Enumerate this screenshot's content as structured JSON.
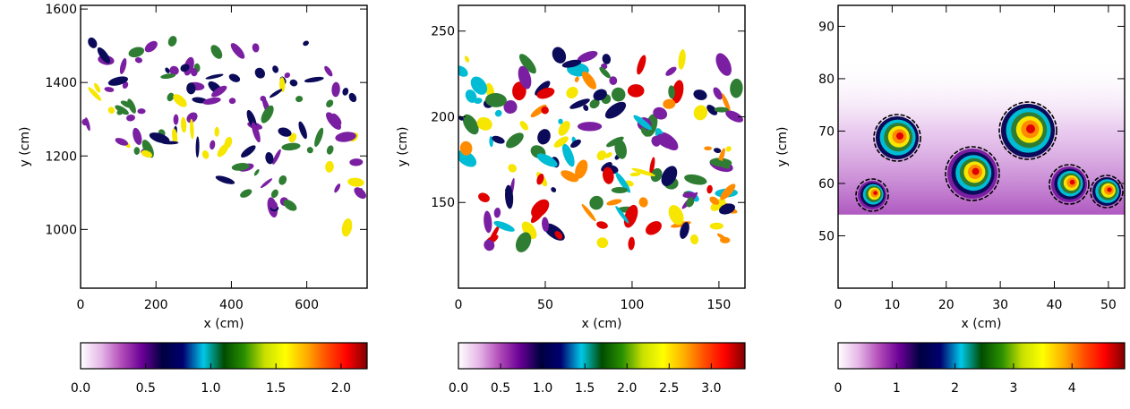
{
  "chart_data": [
    {
      "type": "heatmap",
      "xlabel": "x (cm)",
      "ylabel": "y (cm)",
      "xlim": [
        0,
        760
      ],
      "ylim": [
        840,
        1610
      ],
      "x_ticks": [
        "0",
        "200",
        "400",
        "600"
      ],
      "y_ticks": [
        "1000",
        "1200",
        "1400",
        "1600"
      ],
      "x_tick_values": [
        0,
        200,
        400,
        600
      ],
      "y_tick_values": [
        1000,
        1200,
        1400,
        1600
      ],
      "colorbar": {
        "ticks": [
          "0.0",
          "0.5",
          "1.0",
          "1.5",
          "2.0"
        ],
        "tick_values": [
          0.0,
          0.5,
          1.0,
          1.5,
          2.0
        ],
        "range": [
          0,
          2.2
        ]
      }
    },
    {
      "type": "heatmap",
      "xlabel": "x (cm)",
      "ylabel": "y (cm)",
      "xlim": [
        0,
        165
      ],
      "ylim": [
        100,
        265
      ],
      "x_ticks": [
        "0",
        "50",
        "100",
        "150"
      ],
      "y_ticks": [
        "150",
        "200",
        "250"
      ],
      "x_tick_values": [
        0,
        50,
        100,
        150
      ],
      "y_tick_values": [
        150,
        200,
        250
      ],
      "colorbar": {
        "ticks": [
          "0.0",
          "0.5",
          "1.0",
          "1.5",
          "2.0",
          "2.5",
          "3.0"
        ],
        "tick_values": [
          0.0,
          0.5,
          1.0,
          1.5,
          2.0,
          2.5,
          3.0
        ],
        "range": [
          0,
          3.4
        ]
      }
    },
    {
      "type": "heatmap",
      "xlabel": "x (cm)",
      "ylabel": "y (cm)",
      "xlim": [
        0,
        53
      ],
      "ylim": [
        40,
        94
      ],
      "x_ticks": [
        "0",
        "10",
        "20",
        "30",
        "40",
        "50"
      ],
      "y_ticks": [
        "50",
        "60",
        "70",
        "80",
        "90"
      ],
      "x_tick_values": [
        0,
        10,
        20,
        30,
        40,
        50
      ],
      "y_tick_values": [
        50,
        60,
        70,
        80,
        90
      ],
      "colorbar": {
        "ticks": [
          "0",
          "1",
          "2",
          "3",
          "4"
        ],
        "tick_values": [
          0,
          1,
          2,
          3,
          4
        ],
        "range": [
          0,
          4.9
        ]
      }
    }
  ],
  "colormap": [
    "#ffffff",
    "#e6b7e8",
    "#b24cb8",
    "#6a0096",
    "#000040",
    "#000070",
    "#00c8e8",
    "#004c00",
    "#2a8f00",
    "#c8e000",
    "#ffff00",
    "#ffb000",
    "#ff5000",
    "#ff0000",
    "#800000"
  ],
  "field_colors": {
    "background": "#ffffff",
    "purple": "#7b1fa2",
    "navy": "#0b0b5a",
    "cyan": "#00bcd4",
    "green": "#2e7d32",
    "yellow": "#f6e600",
    "orange": "#ff8c00",
    "red": "#e00000",
    "haze": "#c37ad6"
  },
  "icons": [
    "field-pattern"
  ]
}
